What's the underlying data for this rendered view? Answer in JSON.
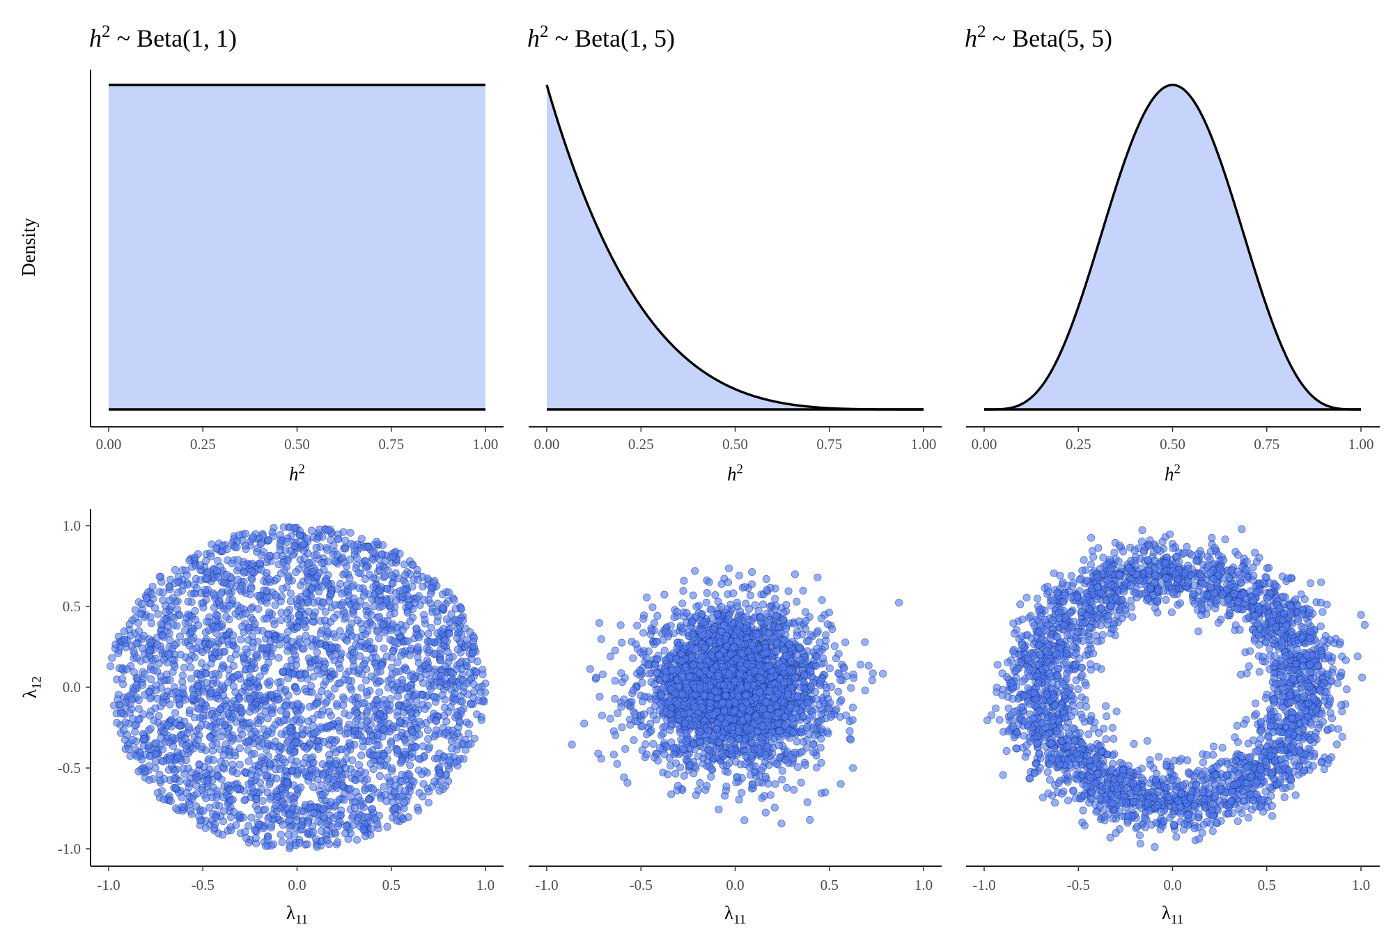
{
  "chart_data": [
    {
      "type": "area",
      "panel": "density",
      "title_var": "h",
      "title_sup": "2",
      "title_rest": " ~ Beta(1, 1)",
      "alpha": 1,
      "beta": 1,
      "xlabel": "h",
      "xlabel_sup": "2",
      "ylabel": "Density",
      "xlim": [
        0,
        1
      ],
      "xticks": [
        "0.00",
        "0.25",
        "0.50",
        "0.75",
        "1.00"
      ]
    },
    {
      "type": "area",
      "panel": "density",
      "title_var": "h",
      "title_sup": "2",
      "title_rest": " ~ Beta(1, 5)",
      "alpha": 1,
      "beta": 5,
      "xlabel": "h",
      "xlabel_sup": "2",
      "ylabel": "",
      "xlim": [
        0,
        1
      ],
      "xticks": [
        "0.00",
        "0.25",
        "0.50",
        "0.75",
        "1.00"
      ]
    },
    {
      "type": "area",
      "panel": "density",
      "title_var": "h",
      "title_sup": "2",
      "title_rest": " ~ Beta(5, 5)",
      "alpha": 5,
      "beta": 5,
      "xlabel": "h",
      "xlabel_sup": "2",
      "ylabel": "",
      "xlim": [
        0,
        1
      ],
      "xticks": [
        "0.00",
        "0.25",
        "0.50",
        "0.75",
        "1.00"
      ]
    },
    {
      "type": "scatter",
      "panel": "loadings",
      "shape": "uniform-disk",
      "n": 3000,
      "radius": 1.0,
      "xlabel": "λ",
      "xlabel_sub": "11",
      "ylabel": "λ",
      "ylabel_sub": "12",
      "xlim": [
        -1,
        1
      ],
      "ylim": [
        -1,
        1
      ],
      "xticks": [
        "-1.0",
        "-0.5",
        "0.0",
        "0.5",
        "1.0"
      ],
      "yticks": [
        "-1.0",
        "-0.5",
        "0.0",
        "0.5",
        "1.0"
      ]
    },
    {
      "type": "scatter",
      "panel": "loadings",
      "shape": "gaussian",
      "n": 3000,
      "sd": 0.24,
      "xlabel": "λ",
      "xlabel_sub": "11",
      "xlim": [
        -1,
        1
      ],
      "ylim": [
        -1,
        1
      ],
      "xticks": [
        "-1.0",
        "-0.5",
        "0.0",
        "0.5",
        "1.0"
      ]
    },
    {
      "type": "scatter",
      "panel": "loadings",
      "shape": "ring",
      "n": 3000,
      "ring_radius": 0.71,
      "ring_sd": 0.11,
      "xlabel": "λ",
      "xlabel_sub": "11",
      "xlim": [
        -1,
        1
      ],
      "ylim": [
        -1,
        1
      ],
      "xticks": [
        "-1.0",
        "-0.5",
        "0.0",
        "0.5",
        "1.0"
      ]
    }
  ],
  "colors": {
    "fill": "#c6d4fc",
    "line": "#000000",
    "point_fill": "#4f7cf0",
    "point_stroke": "#1a2a80"
  }
}
